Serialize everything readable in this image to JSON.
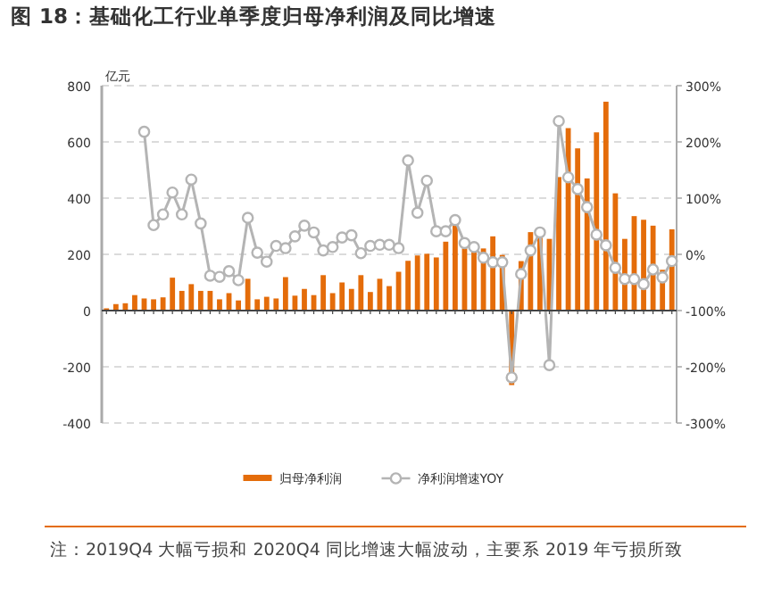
{
  "chart_data": {
    "type": "bar",
    "title": "图 18：基础化工行业单季度归母净利润及同比增速",
    "ylabel": "亿元",
    "categories": [
      null,
      null,
      null,
      null,
      null,
      null,
      null,
      null,
      null,
      null,
      null,
      null,
      null,
      null,
      null,
      null,
      null,
      null,
      null,
      null,
      null,
      null,
      null,
      null,
      null,
      null,
      null,
      null,
      null,
      null,
      null,
      null,
      null,
      null,
      null,
      null,
      null,
      null,
      null,
      null,
      null,
      null,
      null,
      null,
      null,
      null,
      null,
      null,
      null,
      null,
      null,
      null,
      null,
      null,
      null,
      null,
      null,
      null,
      null,
      null,
      null
    ],
    "series": [
      {
        "name": "归母净利润",
        "color": "#e46c0a",
        "values": [
          8,
          23,
          26,
          55,
          43,
          40,
          47,
          117,
          70,
          94,
          70,
          70,
          40,
          62,
          36,
          113,
          40,
          49,
          43,
          119,
          53,
          77,
          55,
          126,
          62,
          100,
          77,
          126,
          66,
          113,
          87,
          138,
          177,
          196,
          202,
          189,
          245,
          302,
          221,
          215,
          221,
          264,
          198,
          -265,
          176,
          279,
          270,
          255,
          475,
          649,
          577,
          470,
          634,
          743,
          417,
          255,
          336,
          323,
          302,
          145,
          289
        ]
      },
      {
        "name": "净利润增速YOY",
        "type": "line",
        "axis": "y2",
        "color": "#b4b4b4",
        "marker": "circle",
        "values": [
          null,
          null,
          null,
          null,
          218,
          52,
          71,
          110,
          71,
          133,
          55,
          -38,
          -40,
          -30,
          -46,
          65,
          3,
          -13,
          15,
          11,
          32,
          51,
          39,
          7,
          13,
          30,
          34,
          2,
          15,
          17,
          17,
          11,
          167,
          74,
          131,
          41,
          41,
          61,
          20,
          13,
          -6,
          -14,
          -14,
          -219,
          -35,
          7,
          39,
          -197,
          237,
          137,
          116,
          84,
          35,
          16,
          -24,
          -44,
          -44,
          -53,
          -27,
          -41,
          -12
        ]
      }
    ],
    "ylim": [
      -400,
      800
    ],
    "yticks": [
      -400,
      -200,
      0,
      200,
      400,
      600,
      800
    ],
    "y2lim": [
      -300,
      300
    ],
    "y2ticks": [
      {
        "value": -300,
        "label": "-300%"
      },
      {
        "value": -200,
        "label": "-200%"
      },
      {
        "value": -100,
        "label": "-100%"
      },
      {
        "value": 0,
        "label": "0%"
      },
      {
        "value": 100,
        "label": "100%"
      },
      {
        "value": 200,
        "label": "200%"
      },
      {
        "value": 300,
        "label": "300%"
      }
    ],
    "grid": "y",
    "legend": "bottom",
    "annotations": [
      "注：2019Q4 大幅亏损和 2020Q4 同比增速大幅波动，主要系 2019 年亏损所致"
    ]
  }
}
